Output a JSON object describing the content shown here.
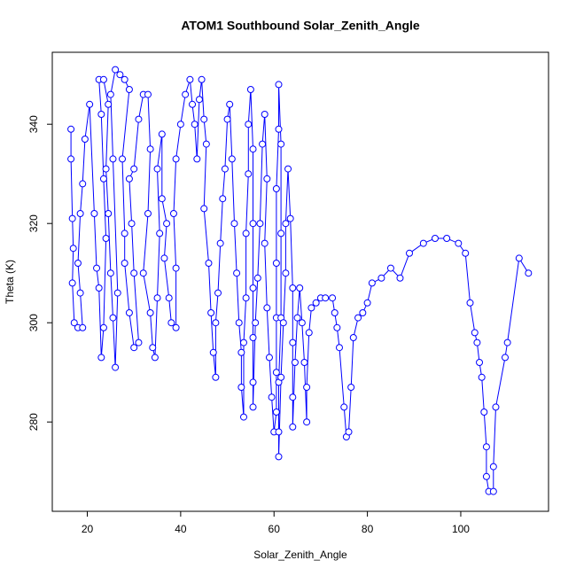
{
  "chart_data": {
    "type": "scatter",
    "title": "ATOM1 Southbound Solar_Zenith_Angle",
    "x_label": "Solar_Zenith_Angle",
    "y_label": "Theta (K)",
    "xlim": [
      12.5,
      118.8
    ],
    "ylim": [
      262.0,
      354.5
    ],
    "xticks": [
      20,
      40,
      60,
      80,
      100
    ],
    "yticks": [
      280,
      300,
      320,
      340
    ],
    "series": [
      {
        "color": "#0000ff",
        "x": [
          16.5,
          16.5,
          16.8,
          17,
          16.8,
          17.2,
          18,
          19,
          18.5,
          18,
          18.5,
          19,
          19.5,
          20.5,
          21.5,
          22,
          22.5,
          23,
          23.5,
          24,
          23.5,
          23,
          22.5,
          23.5,
          24.5,
          24,
          24.5,
          25,
          25.5,
          26,
          26.5,
          25.5,
          25,
          26,
          27,
          28,
          29,
          27.5,
          28,
          28,
          29,
          30,
          31,
          30,
          29.5,
          29,
          30,
          31,
          32,
          33,
          33.5,
          33,
          32,
          33.5,
          34,
          34.5,
          35,
          35.5,
          35,
          36,
          36,
          37,
          36.5,
          37.5,
          38,
          39,
          39,
          38.5,
          39,
          40,
          41,
          42,
          42.5,
          43,
          43.5,
          44,
          44.5,
          45,
          45.5,
          45,
          46,
          46.5,
          47,
          47.5,
          47.5,
          48,
          48.5,
          49,
          49.5,
          50,
          50.5,
          51,
          51.5,
          52,
          52.5,
          53,
          53,
          53.5,
          53.5,
          54,
          54,
          54.5,
          54.5,
          55,
          55.5,
          55.5,
          55.5,
          55.5,
          55.5,
          55.5,
          56,
          56.5,
          57,
          57.5,
          58,
          58.5,
          58,
          58.5,
          59,
          59.5,
          60,
          60.5,
          60.5,
          60.5,
          60.5,
          60.5,
          61,
          61,
          61.5,
          61.5,
          61.5,
          61,
          61,
          61,
          61.5,
          62,
          62.5,
          62.5,
          63,
          63.5,
          64,
          64,
          64,
          64,
          64.5,
          65,
          65.5,
          66,
          66.5,
          67,
          67,
          67.5,
          68,
          69,
          70,
          71,
          72.5,
          73,
          73.5,
          74,
          75,
          75.5,
          76,
          76.5,
          77,
          78,
          79,
          80,
          81,
          83,
          85,
          87,
          89,
          92,
          94.5,
          97,
          99.5,
          101,
          102,
          103,
          103.5,
          104,
          104.5,
          105,
          105.5,
          105.5,
          106,
          107,
          107,
          107.5,
          109.5,
          110,
          112.5,
          114.5
        ],
        "values": [
          339,
          333,
          321,
          315,
          308,
          300,
          299,
          299,
          306,
          312,
          322,
          328,
          337,
          344,
          322,
          311,
          307,
          293,
          299,
          317,
          329,
          342,
          349,
          349,
          344,
          331,
          322,
          310,
          301,
          291,
          306,
          333,
          346,
          351,
          350,
          349,
          347,
          333,
          318,
          312,
          302,
          295,
          296,
          310,
          320,
          329,
          331,
          341,
          346,
          346,
          335,
          322,
          310,
          302,
          295,
          293,
          305,
          318,
          331,
          338,
          325,
          320,
          313,
          305,
          300,
          299,
          311,
          322,
          333,
          340,
          346,
          349,
          344,
          340,
          333,
          345,
          349,
          341,
          336,
          323,
          312,
          302,
          294,
          289,
          300,
          306,
          316,
          325,
          331,
          341,
          344,
          333,
          320,
          310,
          300,
          294,
          287,
          281,
          296,
          305,
          318,
          330,
          340,
          347,
          335,
          320,
          307,
          297,
          288,
          283,
          300,
          309,
          320,
          336,
          342,
          329,
          316,
          303,
          293,
          285,
          278,
          282,
          290,
          301,
          312,
          327,
          339,
          348,
          336,
          318,
          301,
          288,
          278,
          273,
          289,
          300,
          310,
          320,
          331,
          321,
          307,
          296,
          285,
          279,
          292,
          301,
          307,
          300,
          292,
          280,
          287,
          298,
          303,
          304,
          305,
          305,
          305,
          302,
          299,
          295,
          283,
          277,
          278,
          287,
          297,
          301,
          302,
          304,
          308,
          309,
          311,
          309,
          314,
          316,
          317,
          317,
          316,
          314,
          304,
          298,
          296,
          292,
          289,
          282,
          275,
          269,
          266,
          266,
          271,
          283,
          293,
          296,
          313,
          310
        ]
      }
    ]
  }
}
